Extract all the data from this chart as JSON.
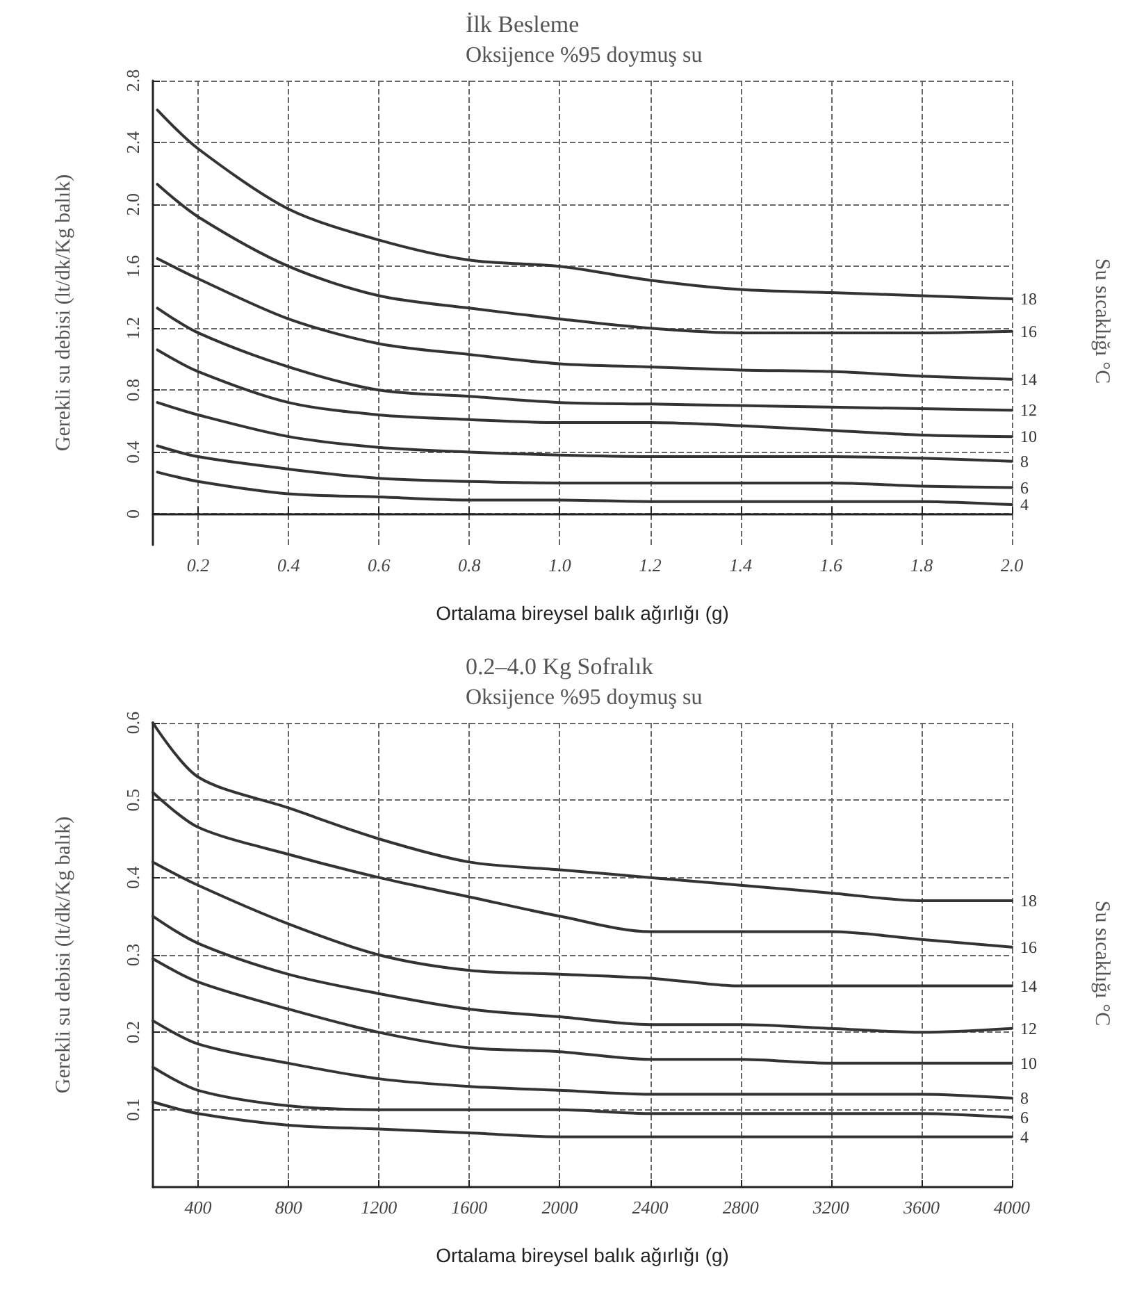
{
  "chart_data": [
    {
      "type": "line",
      "title": "İlk Besleme",
      "subtitle": "Oksijence %95 doymuş su",
      "xlabel": "Ortalama bireysel balık ağırlığı (g)",
      "ylabel": "Gerekli su debisi (lt/dk/Kg balık)",
      "y2label": "Su sıcaklığı °C",
      "x": [
        0.11,
        0.2,
        0.4,
        0.6,
        0.8,
        1.0,
        1.2,
        1.4,
        1.6,
        1.8,
        2.0
      ],
      "series": [
        {
          "name": "4",
          "color": "#333333",
          "values": [
            0.27,
            0.21,
            0.13,
            0.11,
            0.09,
            0.09,
            0.08,
            0.08,
            0.08,
            0.08,
            0.06
          ]
        },
        {
          "name": "6",
          "color": "#333333",
          "values": [
            0.44,
            0.37,
            0.29,
            0.23,
            0.21,
            0.2,
            0.2,
            0.2,
            0.2,
            0.18,
            0.17
          ]
        },
        {
          "name": "8",
          "color": "#333333",
          "values": [
            0.72,
            0.64,
            0.5,
            0.43,
            0.4,
            0.38,
            0.37,
            0.37,
            0.37,
            0.36,
            0.34
          ]
        },
        {
          "name": "10",
          "color": "#333333",
          "values": [
            1.06,
            0.92,
            0.72,
            0.64,
            0.61,
            0.59,
            0.59,
            0.57,
            0.54,
            0.51,
            0.5
          ]
        },
        {
          "name": "12",
          "color": "#333333",
          "values": [
            1.33,
            1.17,
            0.95,
            0.8,
            0.76,
            0.72,
            0.71,
            0.7,
            0.69,
            0.68,
            0.67
          ]
        },
        {
          "name": "14",
          "color": "#333333",
          "values": [
            1.65,
            1.52,
            1.26,
            1.1,
            1.03,
            0.97,
            0.95,
            0.93,
            0.92,
            0.89,
            0.87
          ]
        },
        {
          "name": "16",
          "color": "#333333",
          "values": [
            2.13,
            1.92,
            1.6,
            1.41,
            1.33,
            1.26,
            1.2,
            1.17,
            1.17,
            1.17,
            1.18
          ]
        },
        {
          "name": "18",
          "color": "#333333",
          "values": [
            2.61,
            2.36,
            1.97,
            1.77,
            1.64,
            1.6,
            1.51,
            1.45,
            1.43,
            1.41,
            1.39
          ]
        }
      ],
      "xlim": [
        0.1,
        2.0
      ],
      "xticks": [
        0.2,
        0.4,
        0.6,
        0.8,
        {
          "value": 1.0,
          "label": "1.0"
        },
        1.2,
        1.4,
        1.6,
        1.8,
        {
          "value": 2.0,
          "label": "2.0"
        }
      ],
      "ylim": [
        -0.2,
        2.8
      ],
      "yticks": [
        0.0,
        0.4,
        0.8,
        1.2,
        1.6,
        {
          "value": 2.0,
          "label": "2.0"
        },
        2.4,
        2.8
      ],
      "grid": true,
      "legend": false,
      "marker": "none",
      "line_style": "solid"
    },
    {
      "type": "line",
      "title": "0.2–4.0 Kg Sofralık",
      "subtitle": "Oksijence %95 doymuş su",
      "xlabel": "Ortalama bireysel balık ağırlığı (g)",
      "ylabel": "Gerekli su debisi (lt/dk/Kg balık)",
      "y2label": "Su sıcaklığı °C",
      "x": [
        200,
        400,
        800,
        1200,
        1600,
        2000,
        2400,
        2800,
        3200,
        3600,
        4000
      ],
      "series": [
        {
          "name": "4",
          "color": "#333333",
          "values": [
            0.11,
            0.095,
            0.08,
            0.075,
            0.07,
            0.065,
            0.065,
            0.065,
            0.065,
            0.065,
            0.065
          ]
        },
        {
          "name": "6",
          "color": "#333333",
          "values": [
            0.155,
            0.125,
            0.105,
            0.1,
            0.1,
            0.1,
            0.095,
            0.095,
            0.095,
            0.095,
            0.09
          ]
        },
        {
          "name": "8",
          "color": "#333333",
          "values": [
            0.215,
            0.185,
            0.16,
            0.14,
            0.13,
            0.125,
            0.12,
            0.12,
            0.12,
            0.12,
            0.115
          ]
        },
        {
          "name": "10",
          "color": "#333333",
          "values": [
            0.295,
            0.265,
            0.23,
            0.2,
            0.18,
            0.175,
            0.165,
            0.165,
            0.16,
            0.16,
            0.16
          ]
        },
        {
          "name": "12",
          "color": "#333333",
          "values": [
            0.35,
            0.315,
            0.275,
            0.25,
            0.23,
            0.22,
            0.21,
            0.21,
            0.205,
            0.2,
            0.205
          ]
        },
        {
          "name": "14",
          "color": "#333333",
          "values": [
            0.42,
            0.39,
            0.34,
            0.3,
            0.28,
            0.275,
            0.27,
            0.26,
            0.26,
            0.26,
            0.26
          ]
        },
        {
          "name": "16",
          "color": "#333333",
          "values": [
            0.51,
            0.465,
            0.43,
            0.4,
            0.375,
            0.35,
            0.33,
            0.33,
            0.33,
            0.32,
            0.31
          ]
        },
        {
          "name": "18",
          "color": "#333333",
          "values": [
            0.6,
            0.53,
            0.49,
            0.45,
            0.42,
            0.41,
            0.4,
            0.39,
            0.38,
            0.37,
            0.37
          ]
        }
      ],
      "xlim": [
        200,
        4000
      ],
      "xticks": [
        400,
        800,
        1200,
        1600,
        2000,
        2400,
        2800,
        3200,
        3600,
        4000
      ],
      "ylim": [
        0,
        0.6
      ],
      "yticks": [
        0.1,
        0.2,
        0.3,
        0.4,
        0.5,
        0.6
      ],
      "grid": true,
      "legend": false,
      "marker": "none",
      "line_style": "solid"
    }
  ]
}
